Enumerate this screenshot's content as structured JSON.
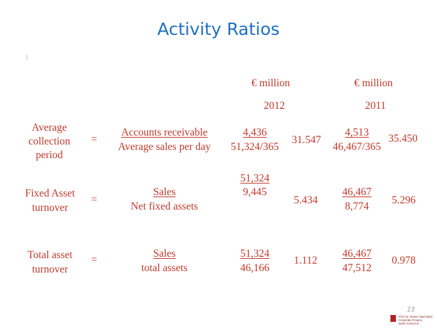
{
  "title": "Activity Ratios",
  "columns": [
    {
      "unit": "€ million",
      "year": "2012"
    },
    {
      "unit": "€ million",
      "year": "2011"
    }
  ],
  "rows": [
    {
      "label_lines": [
        "Average",
        "collection",
        "period"
      ],
      "equals": "=",
      "formula_num": "Accounts receivable",
      "formula_den": "Average sales per day",
      "y2012_num": "4,436",
      "y2012_den": "51,324/365",
      "y2012_result": "31.547",
      "y2011_num": "4,513",
      "y2011_den": "46,467/365",
      "y2011_result": "35.450"
    },
    {
      "label_lines": [
        "Fixed Asset",
        "turnover"
      ],
      "equals": "=",
      "formula_num": "Sales",
      "formula_den": "Net fixed assets",
      "y2012_num": "51,324",
      "y2012_den": "9,445",
      "y2012_result": "5.434",
      "y2011_num": "46,467",
      "y2011_den": "8,774",
      "y2011_result": "5.296"
    },
    {
      "label_lines": [
        "Total asset",
        "turnover"
      ],
      "equals": "=",
      "formula_num": "Sales",
      "formula_den": "total assets",
      "y2012_num": "51,324",
      "y2012_den": "46,166",
      "y2012_result": "1.112",
      "y2011_num": "46,467",
      "y2011_den": "47,512",
      "y2011_result": "0.978"
    }
  ],
  "footer": {
    "page_number": "13",
    "lines": [
      "Prof. Dr. Rainer Stachuletz",
      "Corporate Finance",
      "Berlin School of"
    ]
  },
  "colors": {
    "title": "#1f6fc0",
    "body_text": "#c0392b",
    "footer_accent": "#b22222"
  }
}
